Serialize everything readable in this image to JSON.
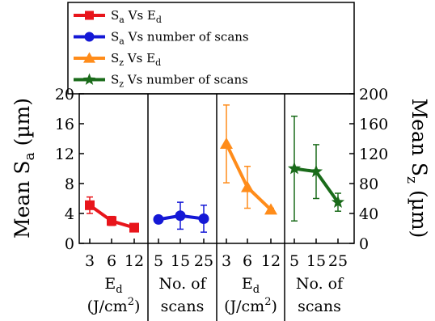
{
  "chart_data": {
    "type": "line",
    "ylabel_left": {
      "main": "Mean S",
      "sub": "a",
      "unit": " (µm)"
    },
    "ylabel_right": {
      "main": "Mean S",
      "sub": "z",
      "unit": " (µm)"
    },
    "ylim_left": [
      0,
      20
    ],
    "ylim_right": [
      0,
      200
    ],
    "yticks_left": [
      0,
      4,
      8,
      12,
      16,
      20
    ],
    "yticks_right": [
      0,
      40,
      80,
      120,
      160,
      200
    ],
    "grid": false,
    "legend_position": "top-left",
    "panels": [
      {
        "axis": "left",
        "categories": [
          "3",
          "6",
          "12"
        ],
        "xlabel_lines": [
          {
            "main": "E",
            "sub": "d",
            "rest": ""
          },
          {
            "main": "(J/cm",
            "sup": "2",
            "rest": ")"
          }
        ]
      },
      {
        "axis": "left",
        "categories": [
          "5",
          "15",
          "25"
        ],
        "xlabel_lines": [
          {
            "main": "No. of"
          },
          {
            "main": "scans"
          }
        ]
      },
      {
        "axis": "right",
        "categories": [
          "3",
          "6",
          "12"
        ],
        "xlabel_lines": [
          {
            "main": "E",
            "sub": "d",
            "rest": ""
          },
          {
            "main": "(J/cm",
            "sup": "2",
            "rest": ")"
          }
        ]
      },
      {
        "axis": "right",
        "categories": [
          "5",
          "15",
          "25"
        ],
        "xlabel_lines": [
          {
            "main": "No. of"
          },
          {
            "main": "scans"
          }
        ]
      }
    ],
    "series": [
      {
        "name": {
          "p1": "S",
          "s1": "a",
          "p2": " Vs E",
          "s2": "d",
          "p3": ""
        },
        "color": "#e8151b",
        "marker": "square",
        "panel": 0,
        "values": [
          5.1,
          3.0,
          2.1
        ],
        "errors": [
          1.1,
          0.6,
          0.3
        ]
      },
      {
        "name": {
          "p1": "S",
          "s1": "a",
          "p2": " Vs number of scans",
          "s2": "",
          "p3": ""
        },
        "color": "#1418d6",
        "marker": "circle",
        "panel": 1,
        "values": [
          3.2,
          3.7,
          3.3
        ],
        "errors": [
          0.3,
          1.8,
          1.8
        ]
      },
      {
        "name": {
          "p1": "S",
          "s1": "z",
          "p2": " Vs E",
          "s2": "d",
          "p3": ""
        },
        "color": "#ff8c1a",
        "marker": "triangle",
        "panel": 2,
        "values": [
          133,
          75,
          45
        ],
        "errors": [
          52,
          28,
          2
        ]
      },
      {
        "name": {
          "p1": "S",
          "s1": "z",
          "p2": " Vs number of scans",
          "s2": "",
          "p3": ""
        },
        "color": "#1a6b1a",
        "marker": "star",
        "panel": 3,
        "values": [
          100,
          96,
          55
        ],
        "errors": [
          70,
          36,
          12
        ]
      }
    ]
  }
}
